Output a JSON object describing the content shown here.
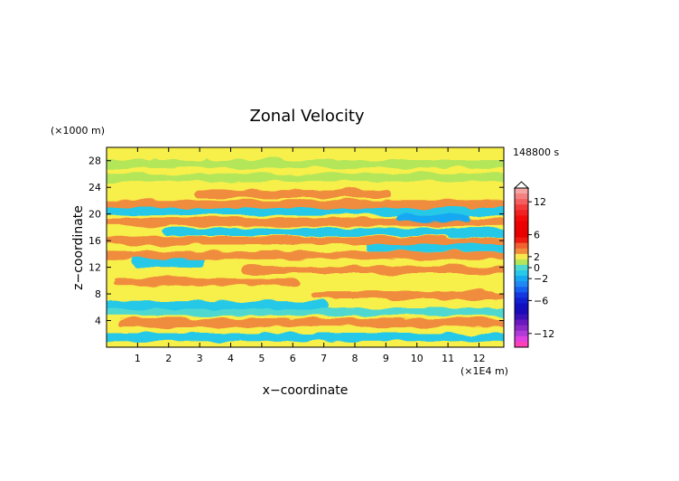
{
  "chart_data": {
    "type": "heatmap",
    "title": "Zonal Velocity",
    "time_label": "148800 s",
    "xlabel": "x−coordinate",
    "ylabel": "z−coordinate",
    "x_unit": "(×1E4 m)",
    "y_unit": "(×1000 m)",
    "xlim": [
      0,
      12.8
    ],
    "ylim": [
      0,
      30
    ],
    "x_ticks": [
      1,
      2,
      3,
      4,
      5,
      6,
      7,
      8,
      9,
      10,
      11,
      12
    ],
    "x_tick_labels": [
      "1",
      "2",
      "3",
      "4",
      "5",
      "6",
      "7",
      "8",
      "9",
      "10",
      "11",
      "12"
    ],
    "y_ticks": [
      4,
      8,
      12,
      16,
      20,
      24,
      28
    ],
    "y_tick_labels": [
      "4",
      "8",
      "12",
      "16",
      "20",
      "24",
      "28"
    ],
    "colorbar": {
      "levels": [
        14,
        13,
        12,
        11,
        10,
        9,
        8,
        7,
        6,
        5,
        4,
        3,
        2,
        1,
        0,
        -1,
        -2,
        -3,
        -4,
        -5,
        -6,
        -7,
        -8,
        -9,
        -10,
        -11,
        -12,
        -13,
        -14
      ],
      "tick_values": [
        12,
        6,
        2,
        0,
        -2,
        -6,
        -12
      ],
      "tick_labels": [
        "12",
        "6",
        "2",
        "0",
        "−2",
        "−6",
        "−12"
      ],
      "colors": [
        "#f6a3a3",
        "#f58080",
        "#f46060",
        "#f33b3b",
        "#f22020",
        "#f20a0a",
        "#ee0000",
        "#ea0000",
        "#e80000",
        "#ee1a10",
        "#f06030",
        "#f08c3c",
        "#f8e850",
        "#b4e65a",
        "#4fd8d0",
        "#28c8e8",
        "#17a8f2",
        "#1f88f5",
        "#1560f0",
        "#1438e0",
        "#1020d0",
        "#1010c0",
        "#1a0ab8",
        "#3c10b8",
        "#6a18c0",
        "#8c28c8",
        "#b03cd8",
        "#e040e0",
        "#ff40b8"
      ]
    },
    "bands": [
      {
        "z": 1.5,
        "value": -1.5,
        "x_range": [
          0,
          12.8
        ]
      },
      {
        "z": 3.7,
        "value": 2.5,
        "x_range": [
          0.5,
          12.8
        ]
      },
      {
        "z": 5.3,
        "value": 0,
        "x_range": [
          0,
          12.8
        ]
      },
      {
        "z": 6.3,
        "value": -1.5,
        "x_range": [
          0,
          7.0
        ]
      },
      {
        "z": 7.8,
        "value": 2.5,
        "x_range": [
          6.8,
          12.8
        ]
      },
      {
        "z": 9.8,
        "value": 2.5,
        "x_range": [
          0.4,
          6.0
        ]
      },
      {
        "z": 11.6,
        "value": 2.5,
        "x_range": [
          4.5,
          12.8
        ]
      },
      {
        "z": 12.7,
        "value": -1.5,
        "x_range": [
          1.0,
          3.0
        ]
      },
      {
        "z": 13.8,
        "value": 2.5,
        "x_range": [
          0,
          12.8
        ]
      },
      {
        "z": 15.0,
        "value": -1.5,
        "x_range": [
          8.5,
          12.8
        ]
      },
      {
        "z": 16.0,
        "value": 2.5,
        "x_range": [
          0,
          12.8
        ]
      },
      {
        "z": 17.3,
        "value": -1.5,
        "x_range": [
          2.0,
          12.8
        ]
      },
      {
        "z": 18.8,
        "value": 2.5,
        "x_range": [
          0,
          12.8
        ]
      },
      {
        "z": 19.5,
        "value": -2.5,
        "x_range": [
          9.5,
          11.5
        ]
      },
      {
        "z": 20.4,
        "value": -1.5,
        "x_range": [
          0,
          12.8
        ]
      },
      {
        "z": 21.5,
        "value": 2.5,
        "x_range": [
          0,
          12.8
        ]
      },
      {
        "z": 23.0,
        "value": 2.5,
        "x_range": [
          3.0,
          9.0
        ]
      },
      {
        "z": 25.5,
        "value": 0.5,
        "x_range": [
          0,
          12.8
        ]
      },
      {
        "z": 27.5,
        "value": 0.5,
        "x_range": [
          0,
          12.8
        ]
      }
    ]
  }
}
